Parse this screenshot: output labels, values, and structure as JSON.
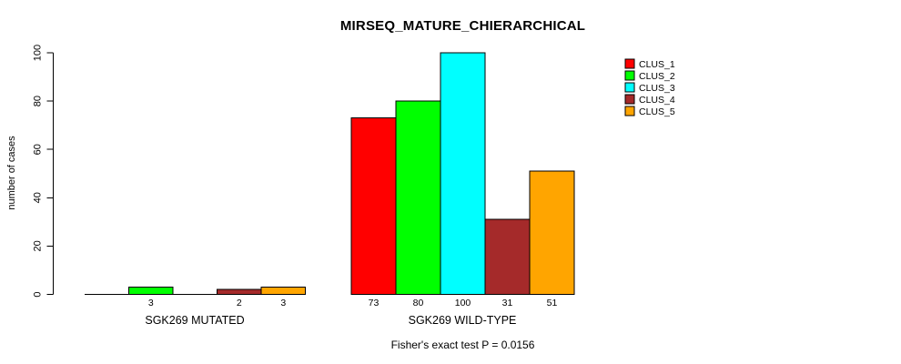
{
  "page": {
    "background_color": "#FFFFFF",
    "text_color": "#000000",
    "axis_color": "#000000"
  },
  "chart_data": {
    "type": "bar",
    "title": "MIRSEQ_MATURE_CHIERARCHICAL",
    "xlabel": "",
    "ylabel": "number of cases",
    "ylim": [
      0,
      100
    ],
    "yticks": [
      0,
      20,
      40,
      60,
      80,
      100
    ],
    "grid": false,
    "legend_position": "right-of-plot-top",
    "categories": [
      "SGK269 MUTATED",
      "SGK269 WILD-TYPE"
    ],
    "series": [
      {
        "name": "CLUS_1",
        "color": "#FF0000",
        "values": [
          0,
          73
        ]
      },
      {
        "name": "CLUS_2",
        "color": "#00FF00",
        "values": [
          3,
          80
        ]
      },
      {
        "name": "CLUS_3",
        "color": "#00FFFF",
        "values": [
          0,
          100
        ]
      },
      {
        "name": "CLUS_4",
        "color": "#A52A2A",
        "values": [
          2,
          31
        ]
      },
      {
        "name": "CLUS_5",
        "color": "#FFA500",
        "values": [
          3,
          51
        ]
      }
    ],
    "bar_value_labels_shown": {
      "SGK269 MUTATED": [
        "3",
        "2",
        "3"
      ],
      "SGK269 WILD-TYPE": [
        "73",
        "80",
        "100",
        "31",
        "51"
      ]
    },
    "annotation": "Fisher's exact test P = 0.0156"
  }
}
